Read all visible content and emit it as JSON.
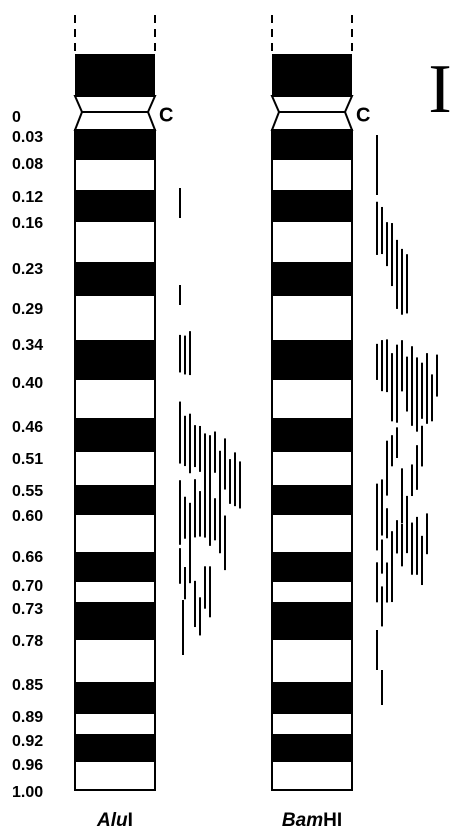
{
  "figure_label": "I",
  "scale": [
    "0",
    "0.03",
    "0.08",
    "0.12",
    "0.16",
    "0.23",
    "0.29",
    "0.34",
    "0.40",
    "0.46",
    "0.51",
    "0.55",
    "0.60",
    "0.66",
    "0.70",
    "0.73",
    "0.78",
    "0.85",
    "0.89",
    "0.92",
    "0.96",
    "1.00"
  ],
  "chromosomes": [
    {
      "centromere": "C",
      "enzyme": {
        "italic": "Alu",
        "roman": "I"
      }
    },
    {
      "centromere": "C",
      "enzyme": {
        "italic": "Bam",
        "roman": "HI"
      }
    }
  ]
}
